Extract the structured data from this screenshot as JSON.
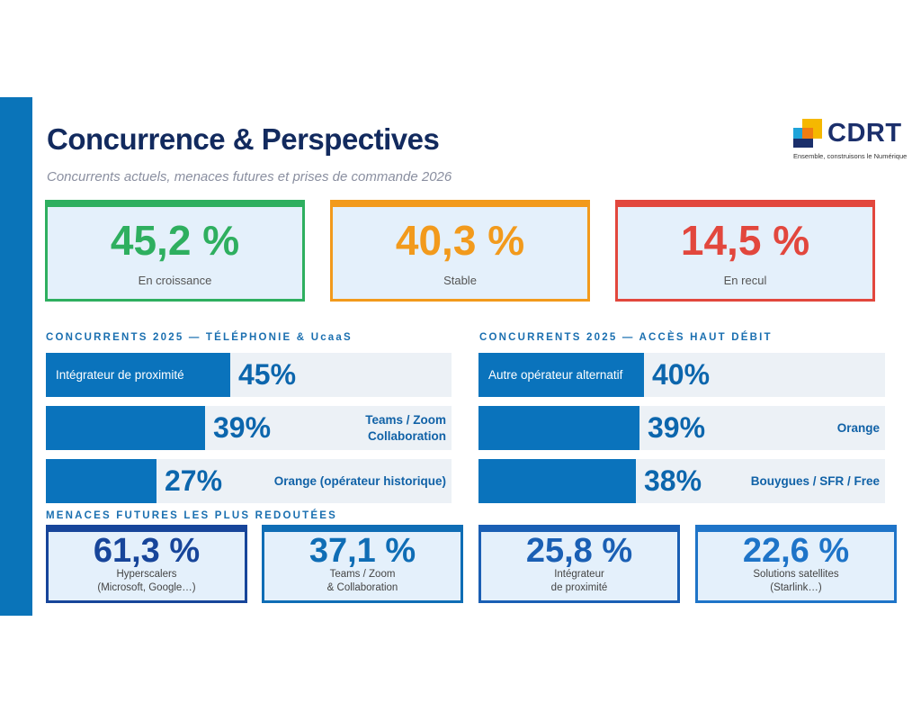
{
  "header": {
    "title": "Concurrence & Perspectives",
    "subtitle": "Concurrents actuels, menaces futures et prises de commande 2026"
  },
  "logo": {
    "name": "CDRT",
    "tagline": "Ensemble, construisons le Numérique"
  },
  "kpis": [
    {
      "value": "45,2 %",
      "label": "En croissance",
      "color": "#2eaf5f"
    },
    {
      "value": "40,3 %",
      "label": "Stable",
      "color": "#f29a1c"
    },
    {
      "value": "14,5 %",
      "label": "En recul",
      "color": "#e2473d"
    }
  ],
  "telephonie": {
    "title": "CONCURRENTS 2025 — TÉLÉPHONIE & UcaaS",
    "items": [
      {
        "value": 45,
        "pct": "45%",
        "label": "Intégrateur de proximité",
        "label_inside": true
      },
      {
        "value": 39,
        "pct": "39%",
        "label": "Teams / Zoom\nCollaboration",
        "label_inside": false
      },
      {
        "value": 27,
        "pct": "27%",
        "label": "Orange (opérateur historique)",
        "label_inside": false
      }
    ]
  },
  "haut_debit": {
    "title": "CONCURRENTS 2025 — ACCÈS HAUT DÉBIT",
    "items": [
      {
        "value": 40,
        "pct": "40%",
        "label": "Autre opérateur alternatif",
        "label_inside": true
      },
      {
        "value": 39,
        "pct": "39%",
        "label": "Orange",
        "label_inside": false
      },
      {
        "value": 38,
        "pct": "38%",
        "label": "Bouygues / SFR / Free",
        "label_inside": false
      }
    ]
  },
  "menaces": {
    "title": "MENACES FUTURES LES PLUS REDOUTÉES",
    "items": [
      {
        "value": "61,3 %",
        "label": "Hyperscalers\n(Microsoft, Google…)",
        "color": "#17459a"
      },
      {
        "value": "37,1 %",
        "label": "Teams / Zoom\n& Collaboration",
        "color": "#0f6db5"
      },
      {
        "value": "25,8 %",
        "label": "Intégrateur\nde proximité",
        "color": "#1a5fb4"
      },
      {
        "value": "22,6 %",
        "label": "Solutions satellites\n(Starlink…)",
        "color": "#1e74c8"
      }
    ]
  }
}
